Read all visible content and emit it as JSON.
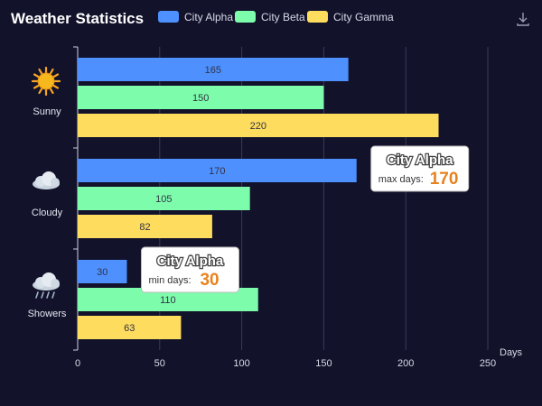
{
  "chart_data": {
    "type": "bar",
    "orientation": "horizontal",
    "title": "Weather Statistics",
    "categories": [
      "Sunny",
      "Cloudy",
      "Showers"
    ],
    "category_icons": [
      "sun-icon",
      "cloud-icon",
      "rain-cloud-icon"
    ],
    "series": [
      {
        "name": "City Alpha",
        "values": [
          165,
          170,
          30
        ],
        "color": "#4d90fe"
      },
      {
        "name": "City Beta",
        "values": [
          150,
          105,
          110
        ],
        "color": "#7dfcab"
      },
      {
        "name": "City Gamma",
        "values": [
          220,
          82,
          63
        ],
        "color": "#fedc5e"
      }
    ],
    "xlabel": "Days",
    "xlim": [
      0,
      250
    ],
    "xticks": [
      0,
      50,
      100,
      150,
      200,
      250
    ],
    "grid": true,
    "legend_position": "top",
    "annotations": [
      {
        "series": "City Alpha",
        "label": "max days:",
        "value": 170,
        "category": "Cloudy"
      },
      {
        "series": "City Alpha",
        "label": "min days:",
        "value": 30,
        "category": "Showers"
      }
    ]
  },
  "toolbar": {
    "download_icon": "download-icon"
  }
}
